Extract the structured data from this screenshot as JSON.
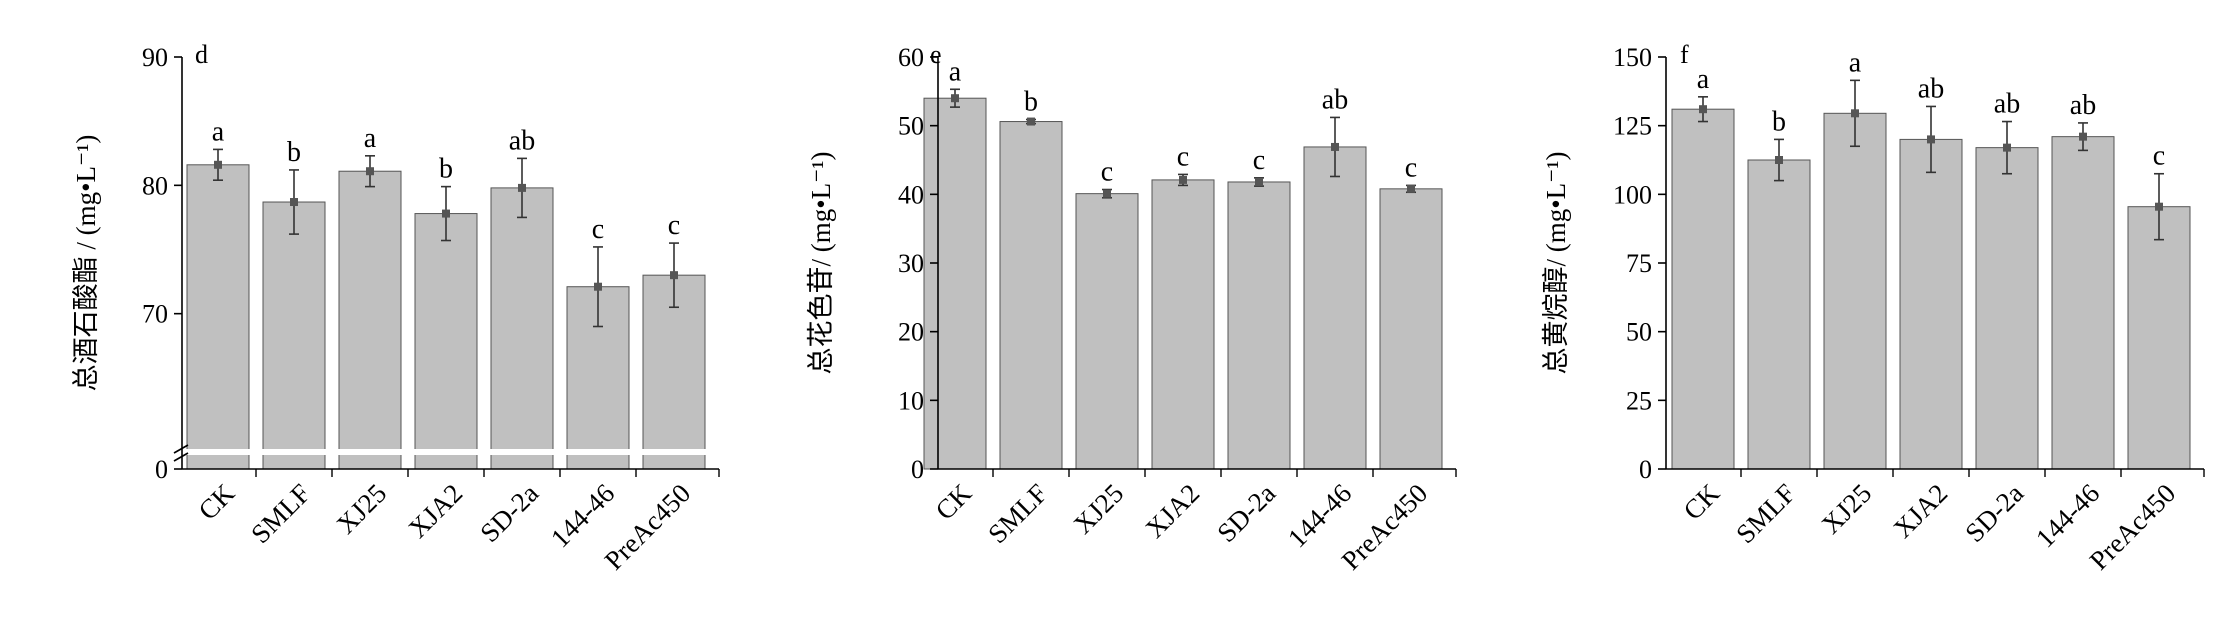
{
  "chart_data": [
    {
      "type": "bar",
      "panel_label": "d",
      "ylabel": "总酒石酸酯 / (mg•L⁻¹)",
      "categories": [
        "CK",
        "SMLF",
        "XJ25",
        "XJA2",
        "SD-2a",
        "144-46",
        "PreAc450"
      ],
      "values": [
        81.6,
        78.7,
        81.1,
        77.8,
        79.8,
        72.1,
        73.0
      ],
      "errors": [
        1.2,
        2.5,
        1.2,
        2.1,
        2.3,
        3.1,
        2.5
      ],
      "letters": [
        "a",
        "b",
        "a",
        "b",
        "ab",
        "c",
        "c"
      ],
      "ylim": [
        60,
        90
      ],
      "yticks": [
        70,
        80,
        90
      ],
      "axis_break": true,
      "axis_zero_label": "0",
      "color": "#c0c0c0"
    },
    {
      "type": "bar",
      "panel_label": "e",
      "ylabel": "总花色苷/ (mg•L⁻¹)",
      "categories": [
        "CK",
        "SMLF",
        "XJ25",
        "XJA2",
        "SD-2a",
        "144-46",
        "PreAc450"
      ],
      "values": [
        54.0,
        50.6,
        40.1,
        42.1,
        41.8,
        46.9,
        40.8
      ],
      "errors": [
        1.3,
        0.3,
        0.6,
        0.8,
        0.6,
        4.3,
        0.5
      ],
      "letters": [
        "a",
        "b",
        "c",
        "c",
        "c",
        "ab",
        "c"
      ],
      "ylim": [
        0,
        60
      ],
      "yticks": [
        0,
        10,
        20,
        30,
        40,
        50,
        60
      ],
      "color": "#c0c0c0"
    },
    {
      "type": "bar",
      "panel_label": "f",
      "ylabel": "总黄烷醇/ (mg•L⁻¹)",
      "categories": [
        "CK",
        "SMLF",
        "XJ25",
        "XJA2",
        "SD-2a",
        "144-46",
        "PreAc450"
      ],
      "values": [
        131,
        112.5,
        129.5,
        120,
        117,
        121,
        95.5
      ],
      "errors": [
        4.5,
        7.5,
        12,
        12,
        9.5,
        5,
        12
      ],
      "letters": [
        "a",
        "b",
        "a",
        "ab",
        "ab",
        "ab",
        "c"
      ],
      "ylim": [
        0,
        150
      ],
      "yticks": [
        0,
        25,
        50,
        75,
        100,
        125,
        150
      ],
      "color": "#c0c0c0"
    }
  ]
}
